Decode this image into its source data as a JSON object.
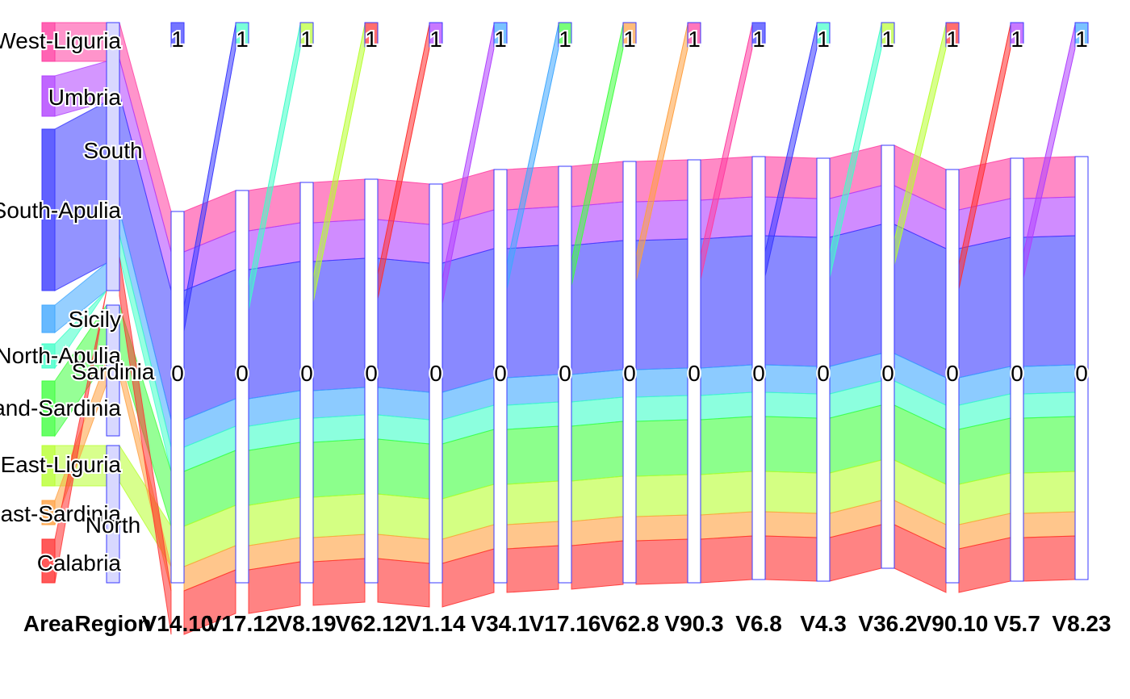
{
  "chart_data": {
    "type": "parallel-sets",
    "title": "",
    "axes": [
      "Area",
      "Region",
      "V14.10",
      "V17.12",
      "V8.19",
      "V62.12",
      "V1.14",
      "V34.1",
      "V17.16",
      "V62.8",
      "V90.3",
      "V6.8",
      "V4.3",
      "V36.2",
      "V90.10",
      "V5.7",
      "V8.23"
    ],
    "area_categories": [
      {
        "label": "West-Liguria",
        "color": "#ff3ca0"
      },
      {
        "label": "Umbria",
        "color": "#b040ff"
      },
      {
        "label": "South-Apulia",
        "color": "#3a3aff"
      },
      {
        "label": "Sicily",
        "color": "#40a8ff"
      },
      {
        "label": "North-Apulia",
        "color": "#40ffc8"
      },
      {
        "label": "Inland-Sardinia",
        "color": "#40ff40"
      },
      {
        "label": "East-Liguria",
        "color": "#b8ff30"
      },
      {
        "label": "Coast-Sardinia",
        "color": "#ffa040"
      },
      {
        "label": "Calabria",
        "color": "#ff3030"
      }
    ],
    "region_categories": [
      "South",
      "Sardinia",
      "North"
    ],
    "binary_levels": [
      "1",
      "0"
    ]
  }
}
